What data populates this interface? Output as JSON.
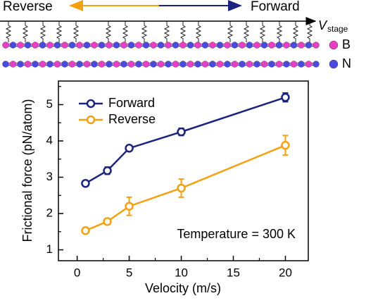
{
  "schematic": {
    "reverse_label": "Reverse",
    "forward_label": "Forward",
    "stage_symbol": "V",
    "stage_subscript": "stage",
    "atom_legend": [
      {
        "name": "B",
        "color": "#e83fc4"
      },
      {
        "name": "N",
        "color": "#4a4ae0"
      }
    ]
  },
  "chart_data": {
    "type": "line",
    "x_label": "Velocity (m/s)",
    "y_label": "Frictional force (pN/atom)",
    "annotation": "Temperature = 300 K",
    "x": [
      0.8,
      2.9,
      5,
      10,
      20
    ],
    "series": [
      {
        "name": "Forward",
        "color": "#1a237e",
        "values": [
          2.83,
          3.18,
          3.8,
          4.25,
          5.2
        ],
        "errors": [
          0.05,
          0.1,
          0.05,
          0.1,
          0.12
        ]
      },
      {
        "name": "Reverse",
        "color": "#f5a00f",
        "values": [
          1.53,
          1.78,
          2.2,
          2.7,
          3.88
        ],
        "errors": [
          0.03,
          0.05,
          0.25,
          0.25,
          0.27
        ]
      }
    ],
    "xlim": [
      -1.8,
      22.2
    ],
    "ylim": [
      0.7,
      5.65
    ],
    "xticks": [
      0,
      5,
      10,
      15,
      20
    ],
    "yticks": [
      1,
      2,
      3,
      4,
      5
    ],
    "minor_xticks": [
      2.5,
      7.5,
      12.5,
      17.5
    ],
    "minor_yticks": [
      1.5,
      2.5,
      3.5,
      4.5,
      5.5
    ]
  }
}
